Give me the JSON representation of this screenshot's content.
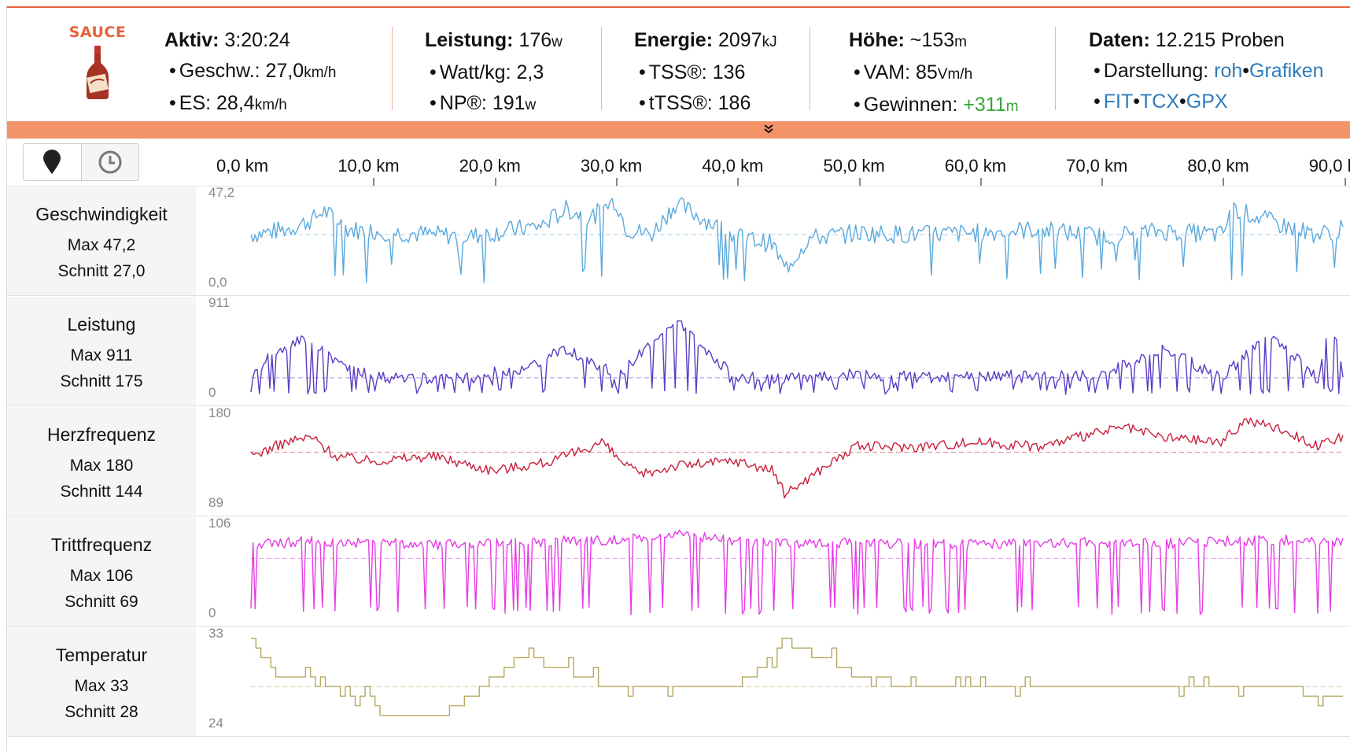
{
  "header": {
    "logo_text": "SAUCE",
    "col1": {
      "title_bold": "Aktiv:",
      "title_value": "3:20:24",
      "line1_label": "Geschw.:",
      "line1_value": "27,0",
      "line1_unit": "km/h",
      "line2_label": "ES:",
      "line2_value": "28,4",
      "line2_unit": "km/h"
    },
    "col2": {
      "title_bold": "Leistung:",
      "title_value": "176",
      "title_unit": "w",
      "line1_label": "Watt/kg:",
      "line1_value": "2,3",
      "line2_label": "NP®:",
      "line2_value": "191",
      "line2_unit": "w"
    },
    "col3": {
      "title_bold": "Energie:",
      "title_value": "2097",
      "title_unit": "kJ",
      "line1_label": "TSS®:",
      "line1_value": "136",
      "line2_label": "tTSS®:",
      "line2_value": "186"
    },
    "col4": {
      "title_bold": "Höhe:",
      "title_value": "~153",
      "title_unit": "m",
      "line1_label": "VAM:",
      "line1_value": "85",
      "line1_unit": "Vm/h",
      "line2_label": "Gewinnen:",
      "line2_value": "+311",
      "line2_unit": "m"
    },
    "col5": {
      "title_bold": "Daten:",
      "title_value": "12.215 Proben",
      "line1_label": "Darstellung:",
      "line1_link1": "roh",
      "line1_link2": "Grafiken",
      "line2_link1": "FIT",
      "line2_link2": "TCX",
      "line2_link3": "GPX"
    },
    "bullet": "•",
    "expand_icon": "chevron-double-down-icon"
  },
  "axis": {
    "ticks": [
      "0,0 km",
      "10,0 km",
      "20,0 km",
      "30,0 km",
      "40,0 km",
      "50,0 km",
      "60,0 km",
      "70,0 km",
      "80,0 km",
      "90,0 km"
    ],
    "buttons": [
      "map-pin-icon",
      "clock-icon"
    ]
  },
  "rows": [
    {
      "name": "Geschwindigkeit",
      "max": "Max 47,2",
      "avg": "Schnitt 27,0",
      "ymax_label": "47,2",
      "ymin_label": "0,0"
    },
    {
      "name": "Leistung",
      "max": "Max 911",
      "avg": "Schnitt 175",
      "ymax_label": "911",
      "ymin_label": "0"
    },
    {
      "name": "Herzfrequenz",
      "max": "Max 180",
      "avg": "Schnitt 144",
      "ymax_label": "180",
      "ymin_label": "89"
    },
    {
      "name": "Trittfrequenz",
      "max": "Max 106",
      "avg": "Schnitt 69",
      "ymax_label": "106",
      "ymin_label": "0"
    },
    {
      "name": "Temperatur",
      "max": "Max 33",
      "avg": "Schnitt 28",
      "ymax_label": "33",
      "ymin_label": "24"
    }
  ],
  "colors": {
    "accent": "#e8623c",
    "speed": "#5aa9dc",
    "power": "#5b3cc4",
    "hr": "#c8203c",
    "cadence": "#e63ce6",
    "temp": "#b5a860",
    "link": "#2e7bbb",
    "gain": "#3aa53a"
  },
  "chart_data": [
    {
      "type": "line",
      "title": "Geschwindigkeit",
      "xlabel": "km",
      "xlim": [
        0,
        90
      ],
      "ylim": [
        0,
        47.2
      ],
      "average": 27.0,
      "series": [
        {
          "name": "Geschwindigkeit",
          "x": [
            0,
            3,
            5,
            6,
            8,
            12,
            18,
            24,
            26,
            28,
            30,
            31,
            33,
            35,
            40,
            43,
            44,
            46,
            50,
            55,
            60,
            65,
            70,
            75,
            80,
            81,
            85,
            88,
            90
          ],
          "values": [
            27,
            30,
            35,
            40,
            30,
            28,
            26,
            32,
            41,
            36,
            46,
            30,
            27,
            44,
            26,
            22,
            8,
            25,
            28,
            27,
            28,
            30,
            26,
            29,
            27,
            41,
            32,
            27,
            30
          ]
        }
      ]
    },
    {
      "type": "line",
      "title": "Leistung",
      "xlabel": "km",
      "xlim": [
        0,
        90
      ],
      "ylim": [
        0,
        911
      ],
      "average": 175,
      "series": [
        {
          "name": "Leistung",
          "x": [
            0,
            4,
            10,
            20,
            26,
            30,
            35,
            40,
            44,
            50,
            60,
            70,
            75,
            80,
            84,
            88,
            89,
            90
          ],
          "values": [
            180,
            580,
            170,
            160,
            470,
            170,
            780,
            170,
            160,
            190,
            180,
            190,
            480,
            190,
            620,
            160,
            850,
            170
          ]
        }
      ]
    },
    {
      "type": "line",
      "title": "Herzfrequenz",
      "xlabel": "km",
      "xlim": [
        0,
        90
      ],
      "ylim": [
        89,
        180
      ],
      "average": 144,
      "series": [
        {
          "name": "Herzfrequenz",
          "x": [
            0,
            3,
            5,
            7,
            10,
            15,
            20,
            25,
            29,
            30,
            32,
            35,
            40,
            43,
            44,
            48,
            50,
            55,
            60,
            65,
            70,
            72,
            75,
            80,
            82,
            85,
            88,
            90
          ],
          "values": [
            140,
            155,
            160,
            140,
            135,
            140,
            125,
            135,
            155,
            140,
            120,
            130,
            135,
            125,
            100,
            135,
            150,
            150,
            155,
            150,
            165,
            170,
            160,
            155,
            178,
            168,
            150,
            160
          ]
        }
      ]
    },
    {
      "type": "line",
      "title": "Trittfrequenz",
      "xlabel": "km",
      "xlim": [
        0,
        90
      ],
      "ylim": [
        0,
        106
      ],
      "average": 69,
      "series": [
        {
          "name": "Trittfrequenz",
          "x": [
            0,
            5,
            10,
            15,
            20,
            25,
            30,
            35,
            40,
            45,
            50,
            55,
            60,
            65,
            70,
            75,
            80,
            85,
            90
          ],
          "values": [
            85,
            90,
            88,
            86,
            87,
            90,
            92,
            100,
            90,
            86,
            88,
            87,
            86,
            88,
            89,
            87,
            90,
            92,
            88
          ]
        }
      ]
    },
    {
      "type": "line",
      "title": "Temperatur",
      "xlabel": "km",
      "xlim": [
        0,
        90
      ],
      "ylim": [
        24,
        33
      ],
      "average": 28,
      "series": [
        {
          "name": "Temperatur",
          "x": [
            0,
            1,
            2,
            4,
            8,
            10,
            11,
            12,
            15,
            17,
            20,
            21,
            22,
            24,
            25,
            27,
            30,
            35,
            40,
            42,
            43,
            44,
            45,
            47,
            50,
            55,
            60,
            65,
            70,
            75,
            80,
            85,
            88,
            90
          ],
          "values": [
            33,
            31,
            29,
            29,
            28,
            26,
            25,
            25,
            25,
            26,
            29,
            30,
            31,
            31,
            30,
            29,
            28,
            28,
            28,
            30,
            31,
            33,
            32,
            31,
            29,
            28,
            28,
            28,
            28,
            28,
            28,
            28,
            27,
            27
          ]
        }
      ]
    }
  ]
}
